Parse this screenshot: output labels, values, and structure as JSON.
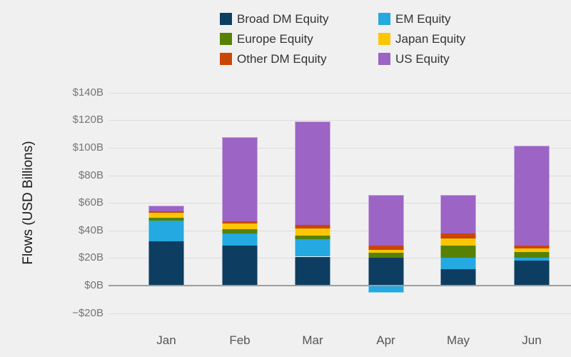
{
  "colors": {
    "background": "#f0f0f0",
    "gridline": "#dcdcdc",
    "zero_line": "#9e9e9e",
    "tick_label": "#757575",
    "month_label": "#555555",
    "axis_title": "#1a1a1a",
    "legend_label": "#333333"
  },
  "chart_data": {
    "type": "bar",
    "stacked": true,
    "title": "",
    "ylabel": "Flows (USD Billions)",
    "xlabel": "",
    "categories": [
      "Jan",
      "Feb",
      "Mar",
      "Apr",
      "May",
      "Jun"
    ],
    "series": [
      {
        "name": "Broad DM Equity",
        "color": "#0d3d61",
        "values": [
          32,
          29,
          21,
          20,
          12,
          18
        ]
      },
      {
        "name": "EM Equity",
        "color": "#24a9e0",
        "values": [
          15,
          9,
          12.5,
          -5,
          8,
          2
        ]
      },
      {
        "name": "Europe Equity",
        "color": "#578103",
        "values": [
          2,
          3,
          3,
          4,
          9,
          4.5
        ]
      },
      {
        "name": "Japan Equity",
        "color": "#fcc606",
        "values": [
          4,
          4,
          5,
          2,
          5,
          2.5
        ]
      },
      {
        "name": "Other DM Equity",
        "color": "#ca4605",
        "values": [
          1,
          1.5,
          2.5,
          3,
          4,
          2
        ]
      },
      {
        "name": "US Equity",
        "color": "#9c64c4",
        "values": [
          4,
          61.5,
          75,
          37,
          28,
          72.5
        ]
      }
    ],
    "y_ticks": [
      {
        "label": "$140B",
        "value": 140
      },
      {
        "label": "$120B",
        "value": 120
      },
      {
        "label": "$100B",
        "value": 100
      },
      {
        "label": "$80B",
        "value": 80
      },
      {
        "label": "$60B",
        "value": 60
      },
      {
        "label": "$40B",
        "value": 40
      },
      {
        "label": "$20B",
        "value": 20
      },
      {
        "label": "$0B",
        "value": 0
      },
      {
        "label": "−$20B",
        "value": -20
      }
    ],
    "ylim": [
      -20,
      140
    ],
    "grid": true,
    "legend_position": "top",
    "legend_columns": [
      [
        "Broad DM Equity",
        "Europe Equity",
        "Other DM Equity"
      ],
      [
        "EM Equity",
        "Japan Equity",
        "US Equity"
      ]
    ]
  }
}
